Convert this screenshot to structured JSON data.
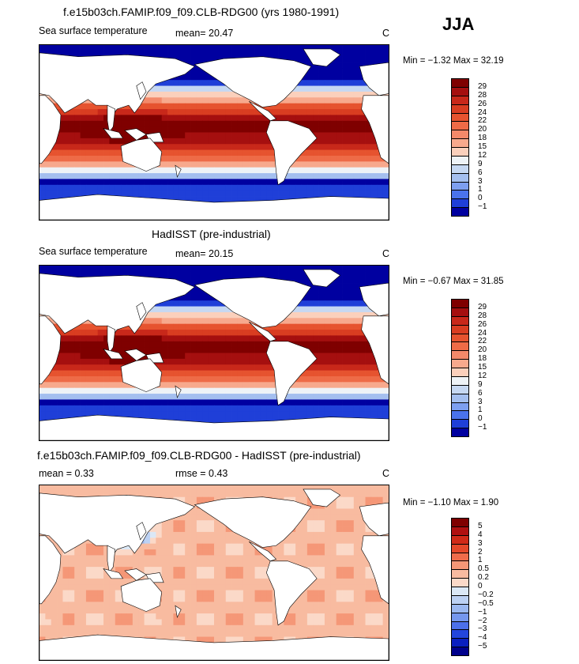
{
  "season": "JJA",
  "panels": [
    {
      "id": "model",
      "title": "f.e15b03ch.FAMIP.f09_f09.CLB-RDG00 (yrs 1980-1991)",
      "variable": "Sea surface temperature",
      "stats_left": "mean=   20.47",
      "stats_right": "",
      "units": "C",
      "minmax": "Min =   −1.32  Max =   32.19",
      "colorbar_labels": [
        "29",
        "28",
        "26",
        "24",
        "22",
        "20",
        "18",
        "15",
        "12",
        "9",
        "6",
        "3",
        "1",
        "0",
        "−1"
      ],
      "colorbar_colors": [
        "#7f0000",
        "#a50f0f",
        "#c8281a",
        "#d93d21",
        "#e6532f",
        "#ee6b47",
        "#f3896a",
        "#f7a98d",
        "#fbd0bc",
        "#eef3f7",
        "#c6d8f2",
        "#a4bfef",
        "#7d9ff0",
        "#4a73ec",
        "#1f3fd8",
        "#0000a0"
      ],
      "field": "sst"
    },
    {
      "id": "obs",
      "title": "HadISST (pre-industrial)",
      "variable": "Sea surface temperature",
      "stats_left": "mean=   20.15",
      "stats_right": "",
      "units": "C",
      "minmax": "Min =   −0.67  Max =   31.85",
      "colorbar_labels": [
        "29",
        "28",
        "26",
        "24",
        "22",
        "20",
        "18",
        "15",
        "12",
        "9",
        "6",
        "3",
        "1",
        "0",
        "−1"
      ],
      "colorbar_colors": [
        "#7f0000",
        "#a50f0f",
        "#c8281a",
        "#d93d21",
        "#e6532f",
        "#ee6b47",
        "#f3896a",
        "#f7a98d",
        "#fbd0bc",
        "#eef3f7",
        "#c6d8f2",
        "#a4bfef",
        "#7d9ff0",
        "#4a73ec",
        "#1f3fd8",
        "#0000a0"
      ],
      "field": "sst"
    },
    {
      "id": "diff",
      "title": "f.e15b03ch.FAMIP.f09_f09.CLB-RDG00 - HadISST (pre-industrial)",
      "variable": "",
      "stats_left": "mean =    0.33",
      "stats_right": "rmse =    0.43",
      "units": "C",
      "minmax": "Min =   −1.10  Max =    1.90",
      "colorbar_labels": [
        "5",
        "4",
        "3",
        "2",
        "1",
        "0.5",
        "0.2",
        "0",
        "−0.2",
        "−0.5",
        "−1",
        "−2",
        "−3",
        "−4",
        "−5"
      ],
      "colorbar_colors": [
        "#7f0000",
        "#b01010",
        "#d02a18",
        "#e4482a",
        "#ef6c4b",
        "#f59777",
        "#f8bba0",
        "#fbd9c8",
        "#dbe8f6",
        "#bcd1f3",
        "#9bb8f0",
        "#7597ee",
        "#4c70ea",
        "#2346dd",
        "#0a1fc0",
        "#00008c"
      ],
      "field": "diff"
    }
  ],
  "chart_data": [
    {
      "type": "heatmap",
      "title": "f.e15b03ch.FAMIP.f09_f09.CLB-RDG00 (yrs 1980-1991)",
      "subtitle": "Sea surface temperature",
      "units": "C",
      "mean": 20.47,
      "min": -1.32,
      "max": 32.19,
      "levels": [
        -1,
        0,
        1,
        3,
        6,
        9,
        12,
        15,
        18,
        20,
        22,
        24,
        26,
        28,
        29
      ],
      "season": "JJA"
    },
    {
      "type": "heatmap",
      "title": "HadISST (pre-industrial)",
      "subtitle": "Sea surface temperature",
      "units": "C",
      "mean": 20.15,
      "min": -0.67,
      "max": 31.85,
      "levels": [
        -1,
        0,
        1,
        3,
        6,
        9,
        12,
        15,
        18,
        20,
        22,
        24,
        26,
        28,
        29
      ],
      "season": "JJA"
    },
    {
      "type": "heatmap",
      "title": "f.e15b03ch.FAMIP.f09_f09.CLB-RDG00 - HadISST (pre-industrial)",
      "units": "C",
      "mean": 0.33,
      "rmse": 0.43,
      "min": -1.1,
      "max": 1.9,
      "levels": [
        -5,
        -4,
        -3,
        -2,
        -1,
        -0.5,
        -0.2,
        0,
        0.2,
        0.5,
        1,
        2,
        3,
        4,
        5
      ],
      "season": "JJA"
    }
  ]
}
